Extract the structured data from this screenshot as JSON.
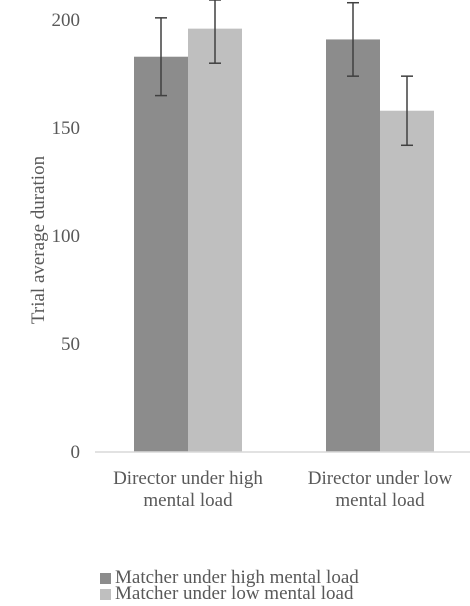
{
  "chart_data": {
    "type": "bar",
    "title": "",
    "xlabel": "",
    "ylabel": "Trial average duration",
    "ylim": [
      0,
      200
    ],
    "yticks": [
      "0",
      "50",
      "100",
      "150",
      "200"
    ],
    "grid": false,
    "legend_position": "bottom",
    "categories": [
      [
        "Director under high",
        "mental load"
      ],
      [
        "Director under low",
        "mental load"
      ]
    ],
    "series": [
      {
        "name": "Matcher under high mental load",
        "color": "#8c8c8c",
        "values": [
          183,
          191
        ],
        "error": [
          18,
          17
        ]
      },
      {
        "name": "Matcher under low mental load",
        "color": "#bfbfbf",
        "values": [
          196,
          158
        ],
        "error": [
          16,
          16
        ]
      }
    ]
  }
}
